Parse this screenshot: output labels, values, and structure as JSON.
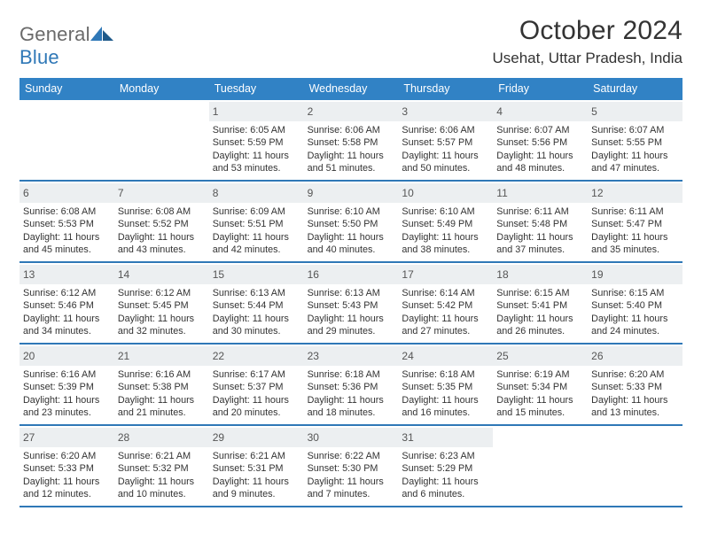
{
  "brand": {
    "word1": "General",
    "word2": "Blue"
  },
  "title": "October 2024",
  "location": "Usehat, Uttar Pradesh, India",
  "header_bg": "#3182c5",
  "rule_color": "#2f78b7",
  "daystrip_bg": "#eceff1",
  "text_color": "#333333",
  "dow_labels": [
    "Sunday",
    "Monday",
    "Tuesday",
    "Wednesday",
    "Thursday",
    "Friday",
    "Saturday"
  ],
  "weeks": [
    [
      {
        "blank": true
      },
      {
        "blank": true
      },
      {
        "n": "1",
        "sr": "6:05 AM",
        "ss": "5:59 PM",
        "dl": "11 hours and 53 minutes."
      },
      {
        "n": "2",
        "sr": "6:06 AM",
        "ss": "5:58 PM",
        "dl": "11 hours and 51 minutes."
      },
      {
        "n": "3",
        "sr": "6:06 AM",
        "ss": "5:57 PM",
        "dl": "11 hours and 50 minutes."
      },
      {
        "n": "4",
        "sr": "6:07 AM",
        "ss": "5:56 PM",
        "dl": "11 hours and 48 minutes."
      },
      {
        "n": "5",
        "sr": "6:07 AM",
        "ss": "5:55 PM",
        "dl": "11 hours and 47 minutes."
      }
    ],
    [
      {
        "n": "6",
        "sr": "6:08 AM",
        "ss": "5:53 PM",
        "dl": "11 hours and 45 minutes."
      },
      {
        "n": "7",
        "sr": "6:08 AM",
        "ss": "5:52 PM",
        "dl": "11 hours and 43 minutes."
      },
      {
        "n": "8",
        "sr": "6:09 AM",
        "ss": "5:51 PM",
        "dl": "11 hours and 42 minutes."
      },
      {
        "n": "9",
        "sr": "6:10 AM",
        "ss": "5:50 PM",
        "dl": "11 hours and 40 minutes."
      },
      {
        "n": "10",
        "sr": "6:10 AM",
        "ss": "5:49 PM",
        "dl": "11 hours and 38 minutes."
      },
      {
        "n": "11",
        "sr": "6:11 AM",
        "ss": "5:48 PM",
        "dl": "11 hours and 37 minutes."
      },
      {
        "n": "12",
        "sr": "6:11 AM",
        "ss": "5:47 PM",
        "dl": "11 hours and 35 minutes."
      }
    ],
    [
      {
        "n": "13",
        "sr": "6:12 AM",
        "ss": "5:46 PM",
        "dl": "11 hours and 34 minutes."
      },
      {
        "n": "14",
        "sr": "6:12 AM",
        "ss": "5:45 PM",
        "dl": "11 hours and 32 minutes."
      },
      {
        "n": "15",
        "sr": "6:13 AM",
        "ss": "5:44 PM",
        "dl": "11 hours and 30 minutes."
      },
      {
        "n": "16",
        "sr": "6:13 AM",
        "ss": "5:43 PM",
        "dl": "11 hours and 29 minutes."
      },
      {
        "n": "17",
        "sr": "6:14 AM",
        "ss": "5:42 PM",
        "dl": "11 hours and 27 minutes."
      },
      {
        "n": "18",
        "sr": "6:15 AM",
        "ss": "5:41 PM",
        "dl": "11 hours and 26 minutes."
      },
      {
        "n": "19",
        "sr": "6:15 AM",
        "ss": "5:40 PM",
        "dl": "11 hours and 24 minutes."
      }
    ],
    [
      {
        "n": "20",
        "sr": "6:16 AM",
        "ss": "5:39 PM",
        "dl": "11 hours and 23 minutes."
      },
      {
        "n": "21",
        "sr": "6:16 AM",
        "ss": "5:38 PM",
        "dl": "11 hours and 21 minutes."
      },
      {
        "n": "22",
        "sr": "6:17 AM",
        "ss": "5:37 PM",
        "dl": "11 hours and 20 minutes."
      },
      {
        "n": "23",
        "sr": "6:18 AM",
        "ss": "5:36 PM",
        "dl": "11 hours and 18 minutes."
      },
      {
        "n": "24",
        "sr": "6:18 AM",
        "ss": "5:35 PM",
        "dl": "11 hours and 16 minutes."
      },
      {
        "n": "25",
        "sr": "6:19 AM",
        "ss": "5:34 PM",
        "dl": "11 hours and 15 minutes."
      },
      {
        "n": "26",
        "sr": "6:20 AM",
        "ss": "5:33 PM",
        "dl": "11 hours and 13 minutes."
      }
    ],
    [
      {
        "n": "27",
        "sr": "6:20 AM",
        "ss": "5:33 PM",
        "dl": "11 hours and 12 minutes."
      },
      {
        "n": "28",
        "sr": "6:21 AM",
        "ss": "5:32 PM",
        "dl": "11 hours and 10 minutes."
      },
      {
        "n": "29",
        "sr": "6:21 AM",
        "ss": "5:31 PM",
        "dl": "11 hours and 9 minutes."
      },
      {
        "n": "30",
        "sr": "6:22 AM",
        "ss": "5:30 PM",
        "dl": "11 hours and 7 minutes."
      },
      {
        "n": "31",
        "sr": "6:23 AM",
        "ss": "5:29 PM",
        "dl": "11 hours and 6 minutes."
      },
      {
        "blank": true
      },
      {
        "blank": true
      }
    ]
  ],
  "labels": {
    "sunrise": "Sunrise:",
    "sunset": "Sunset:",
    "daylight": "Daylight:"
  }
}
